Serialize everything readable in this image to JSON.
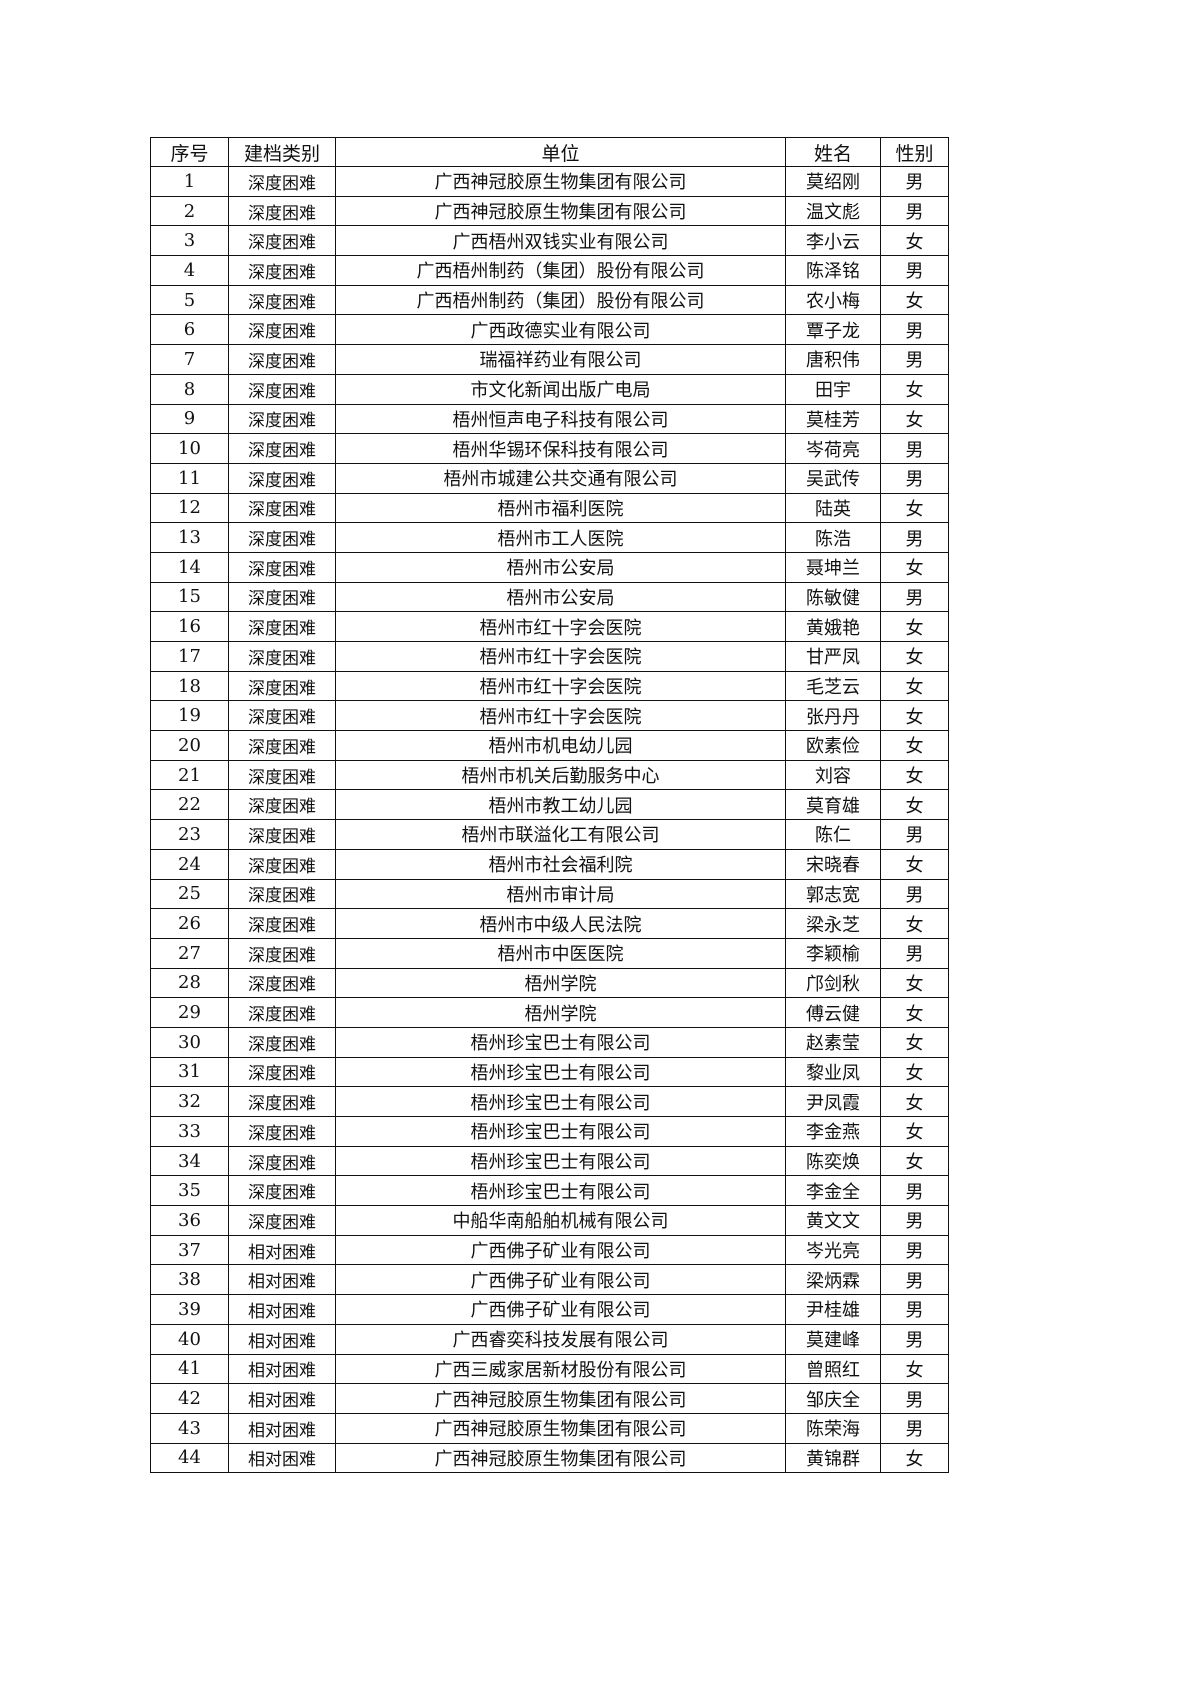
{
  "table": {
    "headers": [
      "序号",
      "建档类别",
      "单位",
      "姓名",
      "性别"
    ],
    "rows": [
      [
        "1",
        "深度困难",
        "广西神冠胶原生物集团有限公司",
        "莫绍刚",
        "男"
      ],
      [
        "2",
        "深度困难",
        "广西神冠胶原生物集团有限公司",
        "温文彪",
        "男"
      ],
      [
        "3",
        "深度困难",
        "广西梧州双钱实业有限公司",
        "李小云",
        "女"
      ],
      [
        "4",
        "深度困难",
        "广西梧州制药（集团）股份有限公司",
        "陈泽铭",
        "男"
      ],
      [
        "5",
        "深度困难",
        "广西梧州制药（集团）股份有限公司",
        "农小梅",
        "女"
      ],
      [
        "6",
        "深度困难",
        "广西政德实业有限公司",
        "覃子龙",
        "男"
      ],
      [
        "7",
        "深度困难",
        "瑞福祥药业有限公司",
        "唐积伟",
        "男"
      ],
      [
        "8",
        "深度困难",
        "市文化新闻出版广电局",
        "田宇",
        "女"
      ],
      [
        "9",
        "深度困难",
        "梧州恒声电子科技有限公司",
        "莫桂芳",
        "女"
      ],
      [
        "10",
        "深度困难",
        "梧州华锡环保科技有限公司",
        "岑荷亮",
        "男"
      ],
      [
        "11",
        "深度困难",
        "梧州市城建公共交通有限公司",
        "吴武传",
        "男"
      ],
      [
        "12",
        "深度困难",
        "梧州市福利医院",
        "陆英",
        "女"
      ],
      [
        "13",
        "深度困难",
        "梧州市工人医院",
        "陈浩",
        "男"
      ],
      [
        "14",
        "深度困难",
        "梧州市公安局",
        "聂坤兰",
        "女"
      ],
      [
        "15",
        "深度困难",
        "梧州市公安局",
        "陈敏健",
        "男"
      ],
      [
        "16",
        "深度困难",
        "梧州市红十字会医院",
        "黄娥艳",
        "女"
      ],
      [
        "17",
        "深度困难",
        "梧州市红十字会医院",
        "甘严凤",
        "女"
      ],
      [
        "18",
        "深度困难",
        "梧州市红十字会医院",
        "毛芝云",
        "女"
      ],
      [
        "19",
        "深度困难",
        "梧州市红十字会医院",
        "张丹丹",
        "女"
      ],
      [
        "20",
        "深度困难",
        "梧州市机电幼儿园",
        "欧素俭",
        "女"
      ],
      [
        "21",
        "深度困难",
        "梧州市机关后勤服务中心",
        "刘容",
        "女"
      ],
      [
        "22",
        "深度困难",
        "梧州市教工幼儿园",
        "莫育雄",
        "女"
      ],
      [
        "23",
        "深度困难",
        "梧州市联溢化工有限公司",
        "陈仁",
        "男"
      ],
      [
        "24",
        "深度困难",
        "梧州市社会福利院",
        "宋晓春",
        "女"
      ],
      [
        "25",
        "深度困难",
        "梧州市审计局",
        "郭志宽",
        "男"
      ],
      [
        "26",
        "深度困难",
        "梧州市中级人民法院",
        "梁永芝",
        "女"
      ],
      [
        "27",
        "深度困难",
        "梧州市中医医院",
        "李颖榆",
        "男"
      ],
      [
        "28",
        "深度困难",
        "梧州学院",
        "邝剑秋",
        "女"
      ],
      [
        "29",
        "深度困难",
        "梧州学院",
        "傅云健",
        "女"
      ],
      [
        "30",
        "深度困难",
        "梧州珍宝巴士有限公司",
        "赵素莹",
        "女"
      ],
      [
        "31",
        "深度困难",
        "梧州珍宝巴士有限公司",
        "黎业凤",
        "女"
      ],
      [
        "32",
        "深度困难",
        "梧州珍宝巴士有限公司",
        "尹凤霞",
        "女"
      ],
      [
        "33",
        "深度困难",
        "梧州珍宝巴士有限公司",
        "李金燕",
        "女"
      ],
      [
        "34",
        "深度困难",
        "梧州珍宝巴士有限公司",
        "陈奕焕",
        "女"
      ],
      [
        "35",
        "深度困难",
        "梧州珍宝巴士有限公司",
        "李金全",
        "男"
      ],
      [
        "36",
        "深度困难",
        "中船华南船舶机械有限公司",
        "黄文文",
        "男"
      ],
      [
        "37",
        "相对困难",
        "广西佛子矿业有限公司",
        "岑光亮",
        "男"
      ],
      [
        "38",
        "相对困难",
        "广西佛子矿业有限公司",
        "梁炳霖",
        "男"
      ],
      [
        "39",
        "相对困难",
        "广西佛子矿业有限公司",
        "尹桂雄",
        "男"
      ],
      [
        "40",
        "相对困难",
        "广西睿奕科技发展有限公司",
        "莫建峰",
        "男"
      ],
      [
        "41",
        "相对困难",
        "广西三威家居新材股份有限公司",
        "曾照红",
        "女"
      ],
      [
        "42",
        "相对困难",
        "广西神冠胶原生物集团有限公司",
        "邹庆全",
        "男"
      ],
      [
        "43",
        "相对困难",
        "广西神冠胶原生物集团有限公司",
        "陈荣海",
        "男"
      ],
      [
        "44",
        "相对困难",
        "广西神冠胶原生物集团有限公司",
        "黄锦群",
        "女"
      ]
    ]
  }
}
